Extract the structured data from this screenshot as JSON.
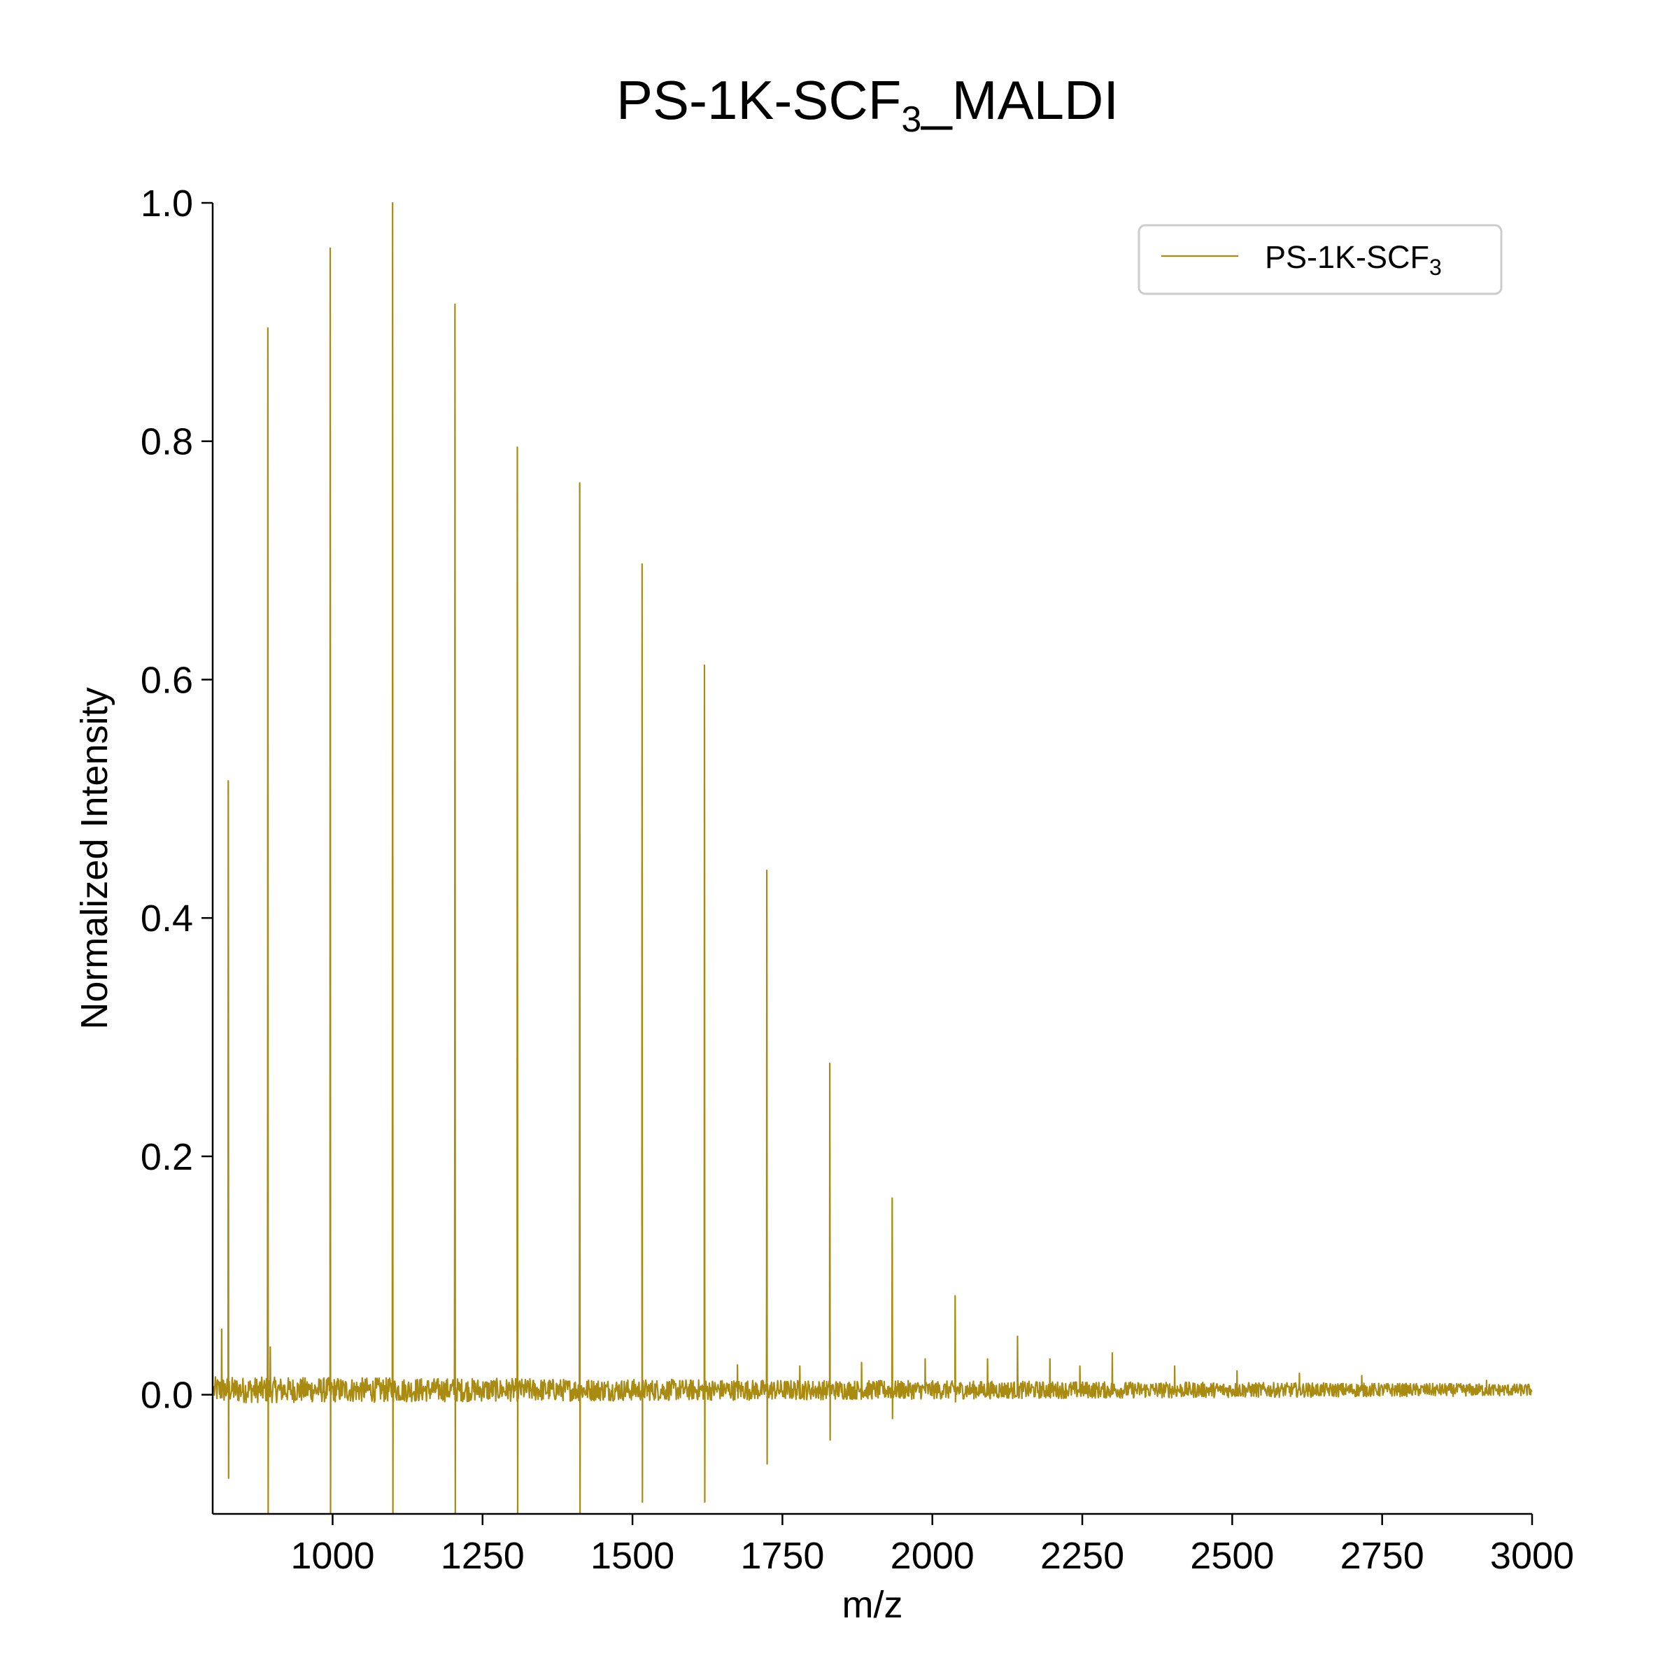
{
  "chart_data": {
    "type": "line",
    "title": "PS-1K-SCF3_MALDI",
    "title_main": "PS-1K-SCF",
    "title_subscript": "3",
    "title_suffix": "_MALDI",
    "xlabel": "m/z",
    "ylabel": "Normalized Intensity",
    "xlim": [
      800,
      3000
    ],
    "ylim": [
      -0.1,
      1.0
    ],
    "x_ticks": [
      1000,
      1250,
      1500,
      1750,
      2000,
      2250,
      2500,
      2750,
      3000
    ],
    "y_ticks": [
      "0.0",
      "0.2",
      "0.4",
      "0.6",
      "0.8",
      "1.0"
    ],
    "grid": false,
    "legend_position": "top-right",
    "series": [
      {
        "name": "PS-1K-SCF3",
        "name_main": "PS-1K-SCF",
        "name_subscript": "3",
        "color": "#A98B12",
        "peaks": [
          {
            "x": 815,
            "y": 0.055,
            "dip": 0.0
          },
          {
            "x": 826,
            "y": 0.515,
            "dip": -0.07
          },
          {
            "x": 892,
            "y": 0.895,
            "dip": -0.1
          },
          {
            "x": 896,
            "y": 0.04,
            "dip": 0.0
          },
          {
            "x": 996,
            "y": 0.962,
            "dip": -0.1
          },
          {
            "x": 1100,
            "y": 1.0,
            "dip": -0.1
          },
          {
            "x": 1204,
            "y": 0.915,
            "dip": -0.1
          },
          {
            "x": 1308,
            "y": 0.795,
            "dip": -0.1
          },
          {
            "x": 1412,
            "y": 0.765,
            "dip": -0.1
          },
          {
            "x": 1516,
            "y": 0.697,
            "dip": -0.09
          },
          {
            "x": 1620,
            "y": 0.612,
            "dip": -0.09
          },
          {
            "x": 1675,
            "y": 0.025,
            "dip": 0.0
          },
          {
            "x": 1724,
            "y": 0.44,
            "dip": -0.058
          },
          {
            "x": 1779,
            "y": 0.024,
            "dip": 0.0
          },
          {
            "x": 1829,
            "y": 0.278,
            "dip": -0.038
          },
          {
            "x": 1882,
            "y": 0.027,
            "dip": 0.0
          },
          {
            "x": 1933,
            "y": 0.165,
            "dip": -0.02
          },
          {
            "x": 1988,
            "y": 0.03,
            "dip": 0.0
          },
          {
            "x": 2038,
            "y": 0.083,
            "dip": -0.006
          },
          {
            "x": 2092,
            "y": 0.03,
            "dip": 0.0
          },
          {
            "x": 2142,
            "y": 0.049,
            "dip": 0.0
          },
          {
            "x": 2196,
            "y": 0.03,
            "dip": 0.0
          },
          {
            "x": 2246,
            "y": 0.024,
            "dip": 0.0
          },
          {
            "x": 2300,
            "y": 0.035,
            "dip": 0.0
          },
          {
            "x": 2404,
            "y": 0.024,
            "dip": 0.0
          },
          {
            "x": 2508,
            "y": 0.02,
            "dip": 0.0
          },
          {
            "x": 2612,
            "y": 0.018,
            "dip": 0.0
          },
          {
            "x": 2716,
            "y": 0.016,
            "dip": 0.0
          },
          {
            "x": 2924,
            "y": 0.012,
            "dip": 0.0
          }
        ]
      }
    ]
  }
}
